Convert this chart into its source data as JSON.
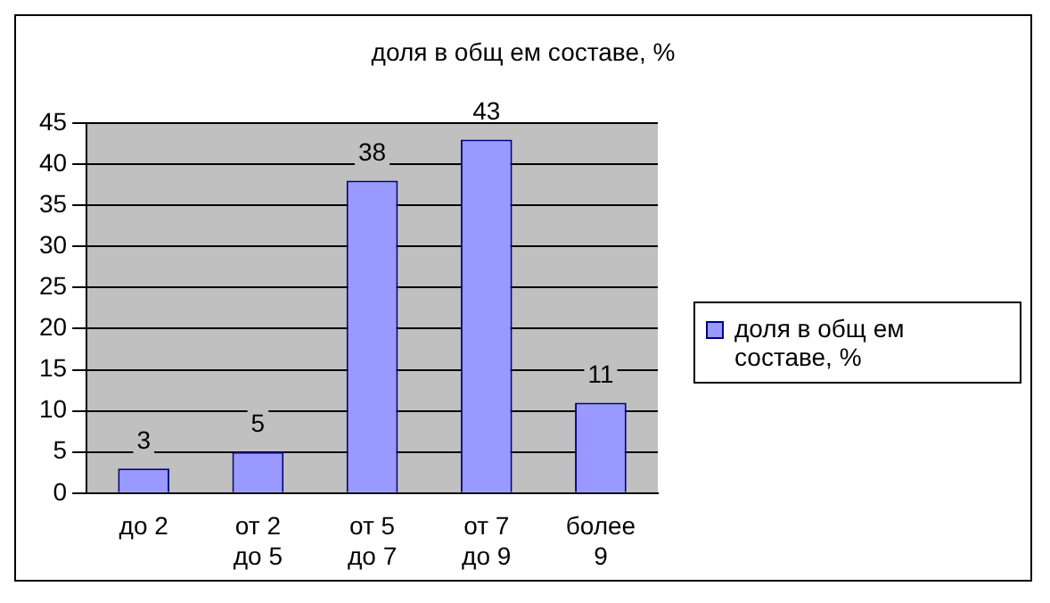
{
  "chart_data": {
    "type": "bar",
    "title": "доля в общ ем составе, %",
    "categories": [
      "до 2",
      "от 2\nдо 5",
      "от 5\nдо 7",
      "от 7\nдо 9",
      "более\n9"
    ],
    "series": [
      {
        "name": "доля в общ ем составе, %",
        "color": "#9999ff",
        "values": [
          3,
          5,
          38,
          43,
          11
        ]
      }
    ],
    "ylim": [
      0,
      45
    ],
    "yticks": [
      0,
      5,
      10,
      15,
      20,
      25,
      30,
      35,
      40,
      45
    ],
    "grid": "y",
    "legend": "right",
    "data_labels": true
  }
}
